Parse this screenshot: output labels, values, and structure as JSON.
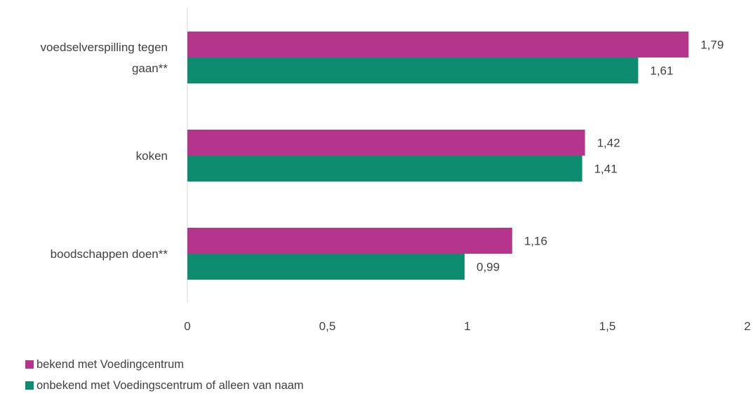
{
  "chart_data": {
    "type": "bar",
    "orientation": "horizontal",
    "categories": [
      "voedselverspilling tegen gaan**",
      "koken",
      "boodschappen doen**"
    ],
    "category_lines": [
      [
        "voedselverspilling tegen",
        "gaan**"
      ],
      [
        "koken"
      ],
      [
        "boodschappen doen**"
      ]
    ],
    "series": [
      {
        "name": "bekend met Voedingcentrum",
        "color": "#B5348C",
        "values": [
          1.79,
          1.42,
          1.16
        ],
        "labels": [
          "1,79",
          "1,42",
          "1,16"
        ]
      },
      {
        "name": "onbekend met Voedingscentrum of alleen van naam",
        "color": "#0E8C70",
        "values": [
          1.61,
          1.41,
          0.99
        ],
        "labels": [
          "1,61",
          "1,41",
          "0,99"
        ]
      }
    ],
    "xlim": [
      0,
      2
    ],
    "x_ticks": [
      0,
      0.5,
      1,
      1.5,
      2
    ],
    "x_tick_labels": [
      "0",
      "0,5",
      "1",
      "1,5",
      "2"
    ],
    "grid": false,
    "legend_position": "bottom-left",
    "title": "",
    "xlabel": "",
    "ylabel": ""
  }
}
